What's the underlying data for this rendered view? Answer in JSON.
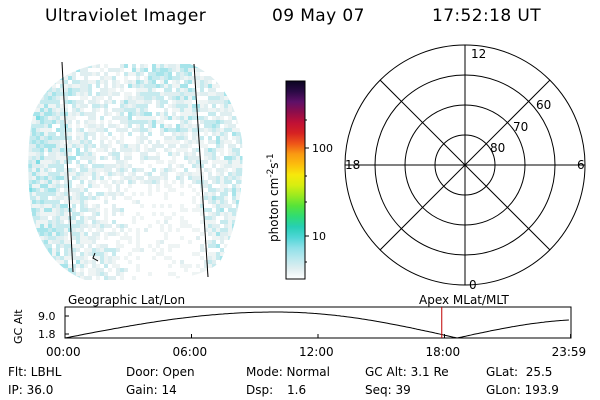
{
  "header": {
    "title": "Ultraviolet Imager",
    "date": "09 May 07",
    "time": "17:52:18 UT"
  },
  "colorbar": {
    "label_unit": "photon cm",
    "label_sup1": "-2",
    "label_mid": "s",
    "label_sup2": "-1",
    "ticks": [
      "100",
      "10"
    ],
    "scale": "log",
    "colors": [
      "#ffffff",
      "#dfeef0",
      "#b9e8ee",
      "#8ee0e8",
      "#4fd6d6",
      "#27cfb4",
      "#2fdc74",
      "#55e33a",
      "#9aea20",
      "#d8ee10",
      "#f7e80b",
      "#fcbd0d",
      "#f99a12",
      "#ee5518",
      "#d62222",
      "#c01035",
      "#8e0d4a",
      "#5e1068",
      "#2a0a45",
      "#0a0520"
    ]
  },
  "polar": {
    "mlt_labels": [
      "12",
      "18",
      "6",
      "0"
    ],
    "lat_labels": [
      "60",
      "70",
      "80"
    ]
  },
  "timeline": {
    "left_label": "Geographic Lat/Lon",
    "right_label": "Apex MLat/MLT",
    "axis_label": "GC Alt",
    "y_ticks": [
      "9.0",
      "1.8"
    ],
    "x_ticks": [
      "00:00",
      "06:00",
      "12:00",
      "18:00",
      "23:59"
    ],
    "marker_time_hours": 17.87,
    "curve_color": "#000000",
    "marker_color": "#c00000"
  },
  "footer": {
    "flt": "Flt: LBHL",
    "ip": "IP: 36.0",
    "door": "Door: Open",
    "gain": "Gain: 14",
    "mode": "Mode: Normal",
    "dsp_label": "Dsp:",
    "dsp_value": "1.6",
    "gc_alt": "GC Alt: 3.1 Re",
    "seq": "Seq: 39",
    "glat": "GLat:  25.5",
    "glon": "GLon: 193.9"
  }
}
